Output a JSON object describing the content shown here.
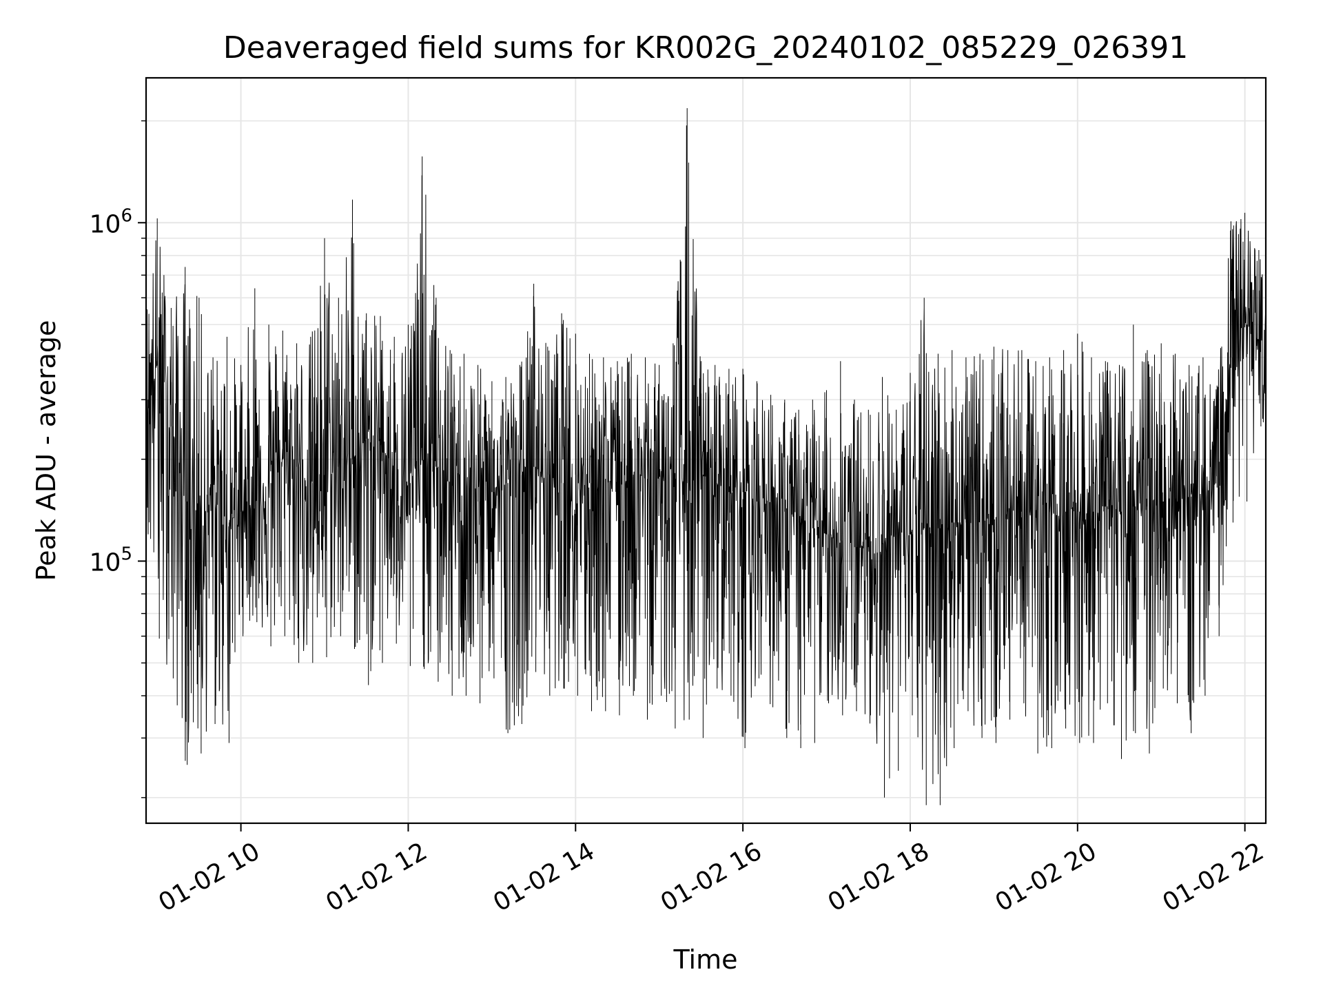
{
  "chart_data": {
    "type": "line",
    "title": "Deaveraged field sums for KR002G_20240102_085229_026391",
    "xlabel": "Time",
    "ylabel": "Peak ADU - average",
    "x_type": "datetime",
    "xlim": [
      "2024-01-02T08:52",
      "2024-01-02T22:15"
    ],
    "yscale": "log",
    "ylim": [
      16800,
      2680000
    ],
    "grid": true,
    "line_color": "#000000",
    "grid_color": "#e6e6e6",
    "x_ticks": [
      {
        "value": "2024-01-02T10:00",
        "label": "01-02 10"
      },
      {
        "value": "2024-01-02T12:00",
        "label": "01-02 12"
      },
      {
        "value": "2024-01-02T14:00",
        "label": "01-02 14"
      },
      {
        "value": "2024-01-02T16:00",
        "label": "01-02 16"
      },
      {
        "value": "2024-01-02T18:00",
        "label": "01-02 18"
      },
      {
        "value": "2024-01-02T20:00",
        "label": "01-02 20"
      },
      {
        "value": "2024-01-02T22:00",
        "label": "01-02 22"
      }
    ],
    "y_ticks": [
      {
        "value": 100000,
        "base": "10",
        "exp": "5"
      },
      {
        "value": 1000000,
        "base": "10",
        "exp": "6"
      }
    ],
    "series": [
      {
        "x": [
          "2024-01-02T08:52",
          "2024-01-02T09:00",
          "2024-01-02T09:10",
          "2024-01-02T09:20",
          "2024-01-02T09:30",
          "2024-01-02T09:40",
          "2024-01-02T09:50",
          "2024-01-02T10:00",
          "2024-01-02T10:10",
          "2024-01-02T10:20",
          "2024-01-02T10:30",
          "2024-01-02T10:40",
          "2024-01-02T10:50",
          "2024-01-02T11:00",
          "2024-01-02T11:10",
          "2024-01-02T11:20",
          "2024-01-02T11:30",
          "2024-01-02T11:40",
          "2024-01-02T11:50",
          "2024-01-02T12:00",
          "2024-01-02T12:10",
          "2024-01-02T12:20",
          "2024-01-02T12:30",
          "2024-01-02T12:40",
          "2024-01-02T12:50",
          "2024-01-02T13:00",
          "2024-01-02T13:10",
          "2024-01-02T13:20",
          "2024-01-02T13:30",
          "2024-01-02T13:40",
          "2024-01-02T13:50",
          "2024-01-02T14:00",
          "2024-01-02T14:10",
          "2024-01-02T14:20",
          "2024-01-02T14:30",
          "2024-01-02T14:40",
          "2024-01-02T14:50",
          "2024-01-02T15:00",
          "2024-01-02T15:10",
          "2024-01-02T15:20",
          "2024-01-02T15:30",
          "2024-01-02T15:40",
          "2024-01-02T15:50",
          "2024-01-02T16:00",
          "2024-01-02T16:10",
          "2024-01-02T16:20",
          "2024-01-02T16:30",
          "2024-01-02T16:40",
          "2024-01-02T16:50",
          "2024-01-02T17:00",
          "2024-01-02T17:10",
          "2024-01-02T17:20",
          "2024-01-02T17:30",
          "2024-01-02T17:40",
          "2024-01-02T17:50",
          "2024-01-02T18:00",
          "2024-01-02T18:10",
          "2024-01-02T18:20",
          "2024-01-02T18:30",
          "2024-01-02T18:40",
          "2024-01-02T18:50",
          "2024-01-02T19:00",
          "2024-01-02T19:10",
          "2024-01-02T19:20",
          "2024-01-02T19:30",
          "2024-01-02T19:40",
          "2024-01-02T19:50",
          "2024-01-02T20:00",
          "2024-01-02T20:10",
          "2024-01-02T20:20",
          "2024-01-02T20:30",
          "2024-01-02T20:40",
          "2024-01-02T20:50",
          "2024-01-02T21:00",
          "2024-01-02T21:10",
          "2024-01-02T21:20",
          "2024-01-02T21:30",
          "2024-01-02T21:40",
          "2024-01-02T21:50",
          "2024-01-02T22:00",
          "2024-01-02T22:10",
          "2024-01-02T22:15"
        ],
        "y": [
          300000,
          380000,
          250000,
          150000,
          130000,
          150000,
          130000,
          140000,
          150000,
          170000,
          200000,
          190000,
          170000,
          180000,
          190000,
          200000,
          230000,
          220000,
          190000,
          170000,
          200000,
          190000,
          170000,
          150000,
          150000,
          160000,
          170000,
          180000,
          190000,
          180000,
          170000,
          180000,
          170000,
          175000,
          180000,
          180000,
          175000,
          180000,
          175000,
          170000,
          180000,
          170000,
          160000,
          160000,
          150000,
          150000,
          140000,
          130000,
          125000,
          120000,
          115000,
          110000,
          110000,
          115000,
          120000,
          120000,
          125000,
          125000,
          130000,
          130000,
          130000,
          135000,
          140000,
          140000,
          140000,
          140000,
          140000,
          140000,
          140000,
          145000,
          140000,
          145000,
          145000,
          150000,
          150000,
          155000,
          160000,
          165000,
          400000,
          500000,
          450000,
          440000
        ],
        "y_high": [
          600000,
          1030000,
          560000,
          740000,
          600000,
          400000,
          460000,
          380000,
          640000,
          500000,
          480000,
          440000,
          460000,
          900000,
          600000,
          1170000,
          540000,
          530000,
          460000,
          500000,
          1570000,
          600000,
          420000,
          410000,
          380000,
          340000,
          350000,
          380000,
          660000,
          430000,
          540000,
          470000,
          410000,
          400000,
          390000,
          410000,
          400000,
          380000,
          440000,
          2180000,
          390000,
          380000,
          370000,
          370000,
          340000,
          310000,
          300000,
          280000,
          300000,
          320000,
          390000,
          300000,
          280000,
          350000,
          280000,
          360000,
          600000,
          410000,
          420000,
          400000,
          410000,
          430000,
          420000,
          420000,
          390000,
          400000,
          420000,
          470000,
          400000,
          390000,
          380000,
          500000,
          420000,
          440000,
          410000,
          380000,
          400000,
          330000,
          1010000,
          1070000,
          830000,
          760000
        ],
        "y_low": [
          120000,
          59000,
          45000,
          25000,
          27000,
          33000,
          29000,
          60000,
          66000,
          56000,
          60000,
          50000,
          50000,
          52000,
          60000,
          55000,
          43000,
          50000,
          57000,
          49000,
          48000,
          44000,
          40000,
          40000,
          38000,
          45000,
          31000,
          33000,
          47000,
          40000,
          42000,
          40000,
          36000,
          36000,
          35000,
          40000,
          34000,
          40000,
          32000,
          34000,
          30000,
          42000,
          40000,
          28000,
          45000,
          37000,
          30000,
          28000,
          29000,
          38000,
          35000,
          36000,
          35000,
          20000,
          24000,
          35000,
          19000,
          19000,
          28000,
          36000,
          30000,
          29000,
          34000,
          38000,
          27000,
          28000,
          32000,
          29000,
          29000,
          38000,
          26000,
          31000,
          27000,
          42000,
          38000,
          31000,
          40000,
          60000,
          130000,
          150000,
          250000,
          250000
        ]
      }
    ]
  }
}
